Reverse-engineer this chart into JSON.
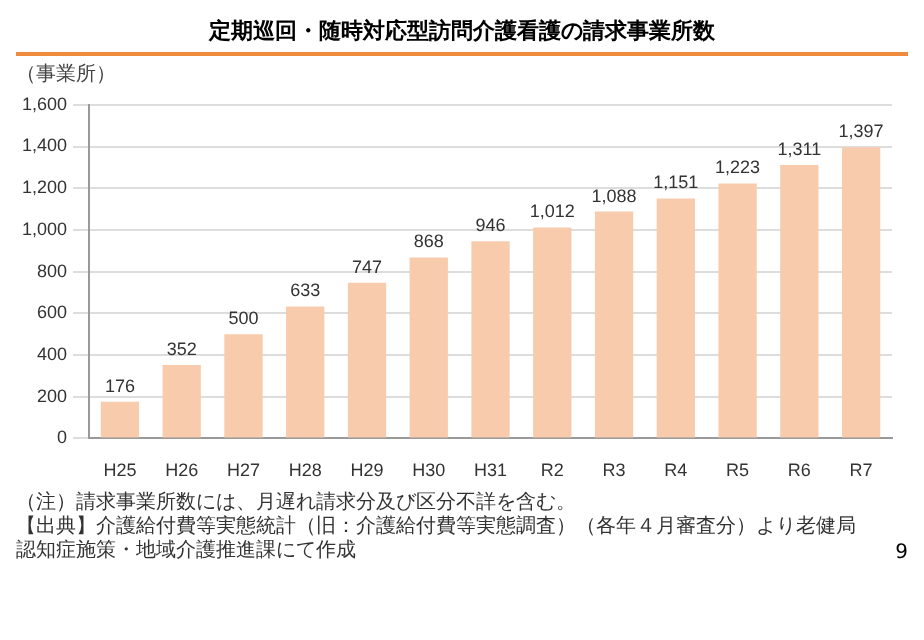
{
  "chart_data": {
    "type": "bar",
    "title": "定期巡回・随時対応型訪問介護看護の請求事業所数",
    "ylabel": "（事業所）",
    "categories": [
      "H25",
      "H26",
      "H27",
      "H28",
      "H29",
      "H30",
      "H31",
      "R2",
      "R3",
      "R4",
      "R5",
      "R6",
      "R7"
    ],
    "values": [
      176,
      352,
      500,
      633,
      747,
      868,
      946,
      1012,
      1088,
      1151,
      1223,
      1311,
      1397
    ],
    "color": "#f8cbad",
    "ylim": [
      0,
      1600
    ],
    "yticks": [
      {
        "value": 0,
        "label": "0"
      },
      {
        "value": 200,
        "label": "200"
      },
      {
        "value": 400,
        "label": "400"
      },
      {
        "value": 600,
        "label": "600"
      },
      {
        "value": 800,
        "label": "800"
      },
      {
        "value": 1000,
        "label": "1,000"
      },
      {
        "value": 1200,
        "label": "1,200"
      },
      {
        "value": 1400,
        "label": "1,400"
      },
      {
        "value": 1600,
        "label": "1,600"
      }
    ],
    "value_labels": [
      "176",
      "352",
      "500",
      "633",
      "747",
      "868",
      "946",
      "1,012",
      "1,088",
      "1,151",
      "1,223",
      "1,311",
      "1,397"
    ],
    "grid": "y",
    "legend": false,
    "annotations": [
      "（注）請求事業所数には、月遅れ請求分及び区分不詳を含む。",
      "【出典】介護給付費等実態統計（旧：介護給付費等実態調査）（各年４月審査分）より老健局認知症施策・地域介護推進課にて作成",
      "9"
    ]
  }
}
